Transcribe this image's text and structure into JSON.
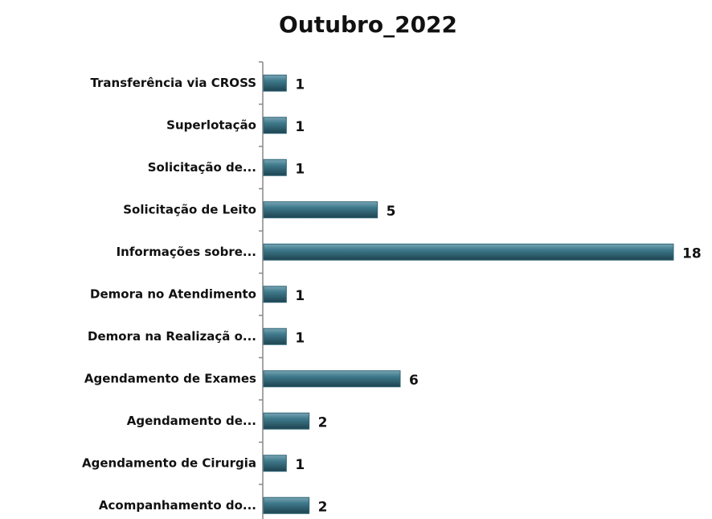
{
  "chart_data": {
    "type": "bar",
    "orientation": "horizontal",
    "title": "Outubro_2022",
    "categories": [
      "Transferência via CROSS",
      "Superlotação",
      "Solicitação de...",
      "Solicitação de Leito",
      "Informações sobre...",
      "Demora no Atendimento",
      "Demora na Realizaçã o...",
      "Agendamento de Exames",
      "Agendamento de...",
      "Agendamento de Cirurgia",
      "Acompanhamento do..."
    ],
    "values": [
      1,
      1,
      1,
      5,
      18,
      1,
      1,
      6,
      2,
      1,
      2
    ],
    "color": "#2f6577"
  }
}
